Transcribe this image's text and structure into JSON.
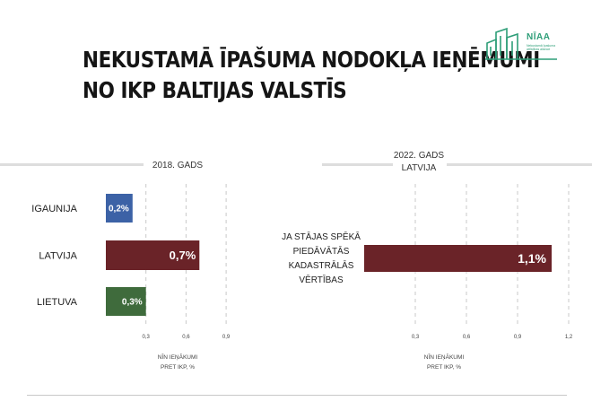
{
  "title_lines": [
    "NEKUSTAMĀ ĪPAŠUMA NODOKĻA IEŅĒMUMI",
    "NO IKP BALTIJAS VALSTĪS"
  ],
  "logo": {
    "name": "NĪAA",
    "subtitle": "Nekustamā īpašuma\nattīstības aliance"
  },
  "colors": {
    "estonia": "#3c62a6",
    "latvia": "#6a2328",
    "lithuania": "#3f6b3c",
    "grid": "#c9c9c9",
    "rule": "#dddddd",
    "logo": "#2e9e78"
  },
  "chart_data": [
    {
      "type": "bar",
      "orientation": "horizontal",
      "title": "2018. GADS",
      "categories": [
        "IGAUNIJA",
        "LATVIJA",
        "LIETUVA"
      ],
      "values": [
        0.2,
        0.7,
        0.3
      ],
      "value_labels": [
        "0,2%",
        "0,7%",
        "0,3%"
      ],
      "x_ticks": [
        "0,3",
        "0,6",
        "0,9"
      ],
      "x_tick_values": [
        0.3,
        0.6,
        0.9
      ],
      "xlim": [
        0,
        1.2
      ],
      "xlabel": [
        "NĪN IEŅĀKUMI",
        "PRET IKP, %"
      ],
      "grid": true
    },
    {
      "type": "bar",
      "orientation": "horizontal",
      "title": [
        "2022. GADS",
        "LATVIJA"
      ],
      "categories": [
        "JA STĀJAS SPĒKĀ PIEDĀVĀTĀS KADASTRĀLĀS VĒRTĪBAS"
      ],
      "category_lines": [
        "JA STĀJAS SPĒKĀ",
        "PIEDĀVĀTĀS",
        "KADASTRĀLĀS",
        "VĒRTĪBAS"
      ],
      "values": [
        1.1
      ],
      "value_labels": [
        "1,1%"
      ],
      "x_ticks": [
        "0,3",
        "0,6",
        "0,9",
        "1,2"
      ],
      "x_tick_values": [
        0.3,
        0.6,
        0.9,
        1.2
      ],
      "xlim": [
        0,
        1.2
      ],
      "xlabel": [
        "NĪN IEŅĀKUMI",
        "PRET IKP, %"
      ],
      "grid": true
    }
  ]
}
